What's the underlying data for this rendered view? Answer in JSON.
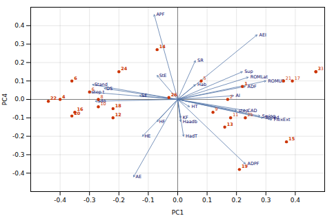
{
  "chart_data": {
    "type": "biplot",
    "xlabel": "PC1",
    "ylabel": "PC4",
    "xlim": [
      -0.5,
      0.5
    ],
    "ylim": [
      -0.5,
      0.5
    ],
    "xticks": [
      -0.4,
      -0.3,
      -0.2,
      -0.1,
      {
        "value": 0,
        "label": "0.0"
      },
      0.1,
      0.2,
      0.3,
      0.4
    ],
    "yticks": [
      -0.4,
      -0.3,
      -0.2,
      -0.1,
      {
        "value": 0,
        "label": "0.0"
      },
      0.1,
      0.2,
      0.3,
      0.4
    ],
    "grid": true,
    "vectors": {
      "color": "#5577aa",
      "label_color": "#000066",
      "origin": [
        0,
        0
      ],
      "points": [
        {
          "name": "APF",
          "x": -0.08,
          "y": 0.46
        },
        {
          "name": "AE",
          "x": -0.15,
          "y": -0.42
        },
        {
          "name": "AEI",
          "x": 0.27,
          "y": 0.35
        },
        {
          "name": "SR",
          "x": 0.06,
          "y": 0.21
        },
        {
          "name": "Sup",
          "x": 0.22,
          "y": 0.15
        },
        {
          "name": "ROMLat",
          "x": 0.24,
          "y": 0.12
        },
        {
          "name": "ROMUP",
          "x": 0.3,
          "y": 0.1
        },
        {
          "name": "ADF",
          "x": 0.23,
          "y": 0.07
        },
        {
          "name": "AI",
          "x": 0.19,
          "y": 0.02
        },
        {
          "name": "Hab",
          "x": 0.06,
          "y": 0.08
        },
        {
          "name": "HT",
          "x": 0.04,
          "y": -0.04
        },
        {
          "name": "KF",
          "x": 0.01,
          "y": -0.1
        },
        {
          "name": "Haadb",
          "x": 0.01,
          "y": -0.12
        },
        {
          "name": "HadT",
          "x": 0.02,
          "y": -0.2
        },
        {
          "name": "HF",
          "x": -0.07,
          "y": -0.12
        },
        {
          "name": "HE",
          "x": -0.12,
          "y": -0.2
        },
        {
          "name": "step",
          "x": 0.2,
          "y": -0.06
        },
        {
          "name": "CAD",
          "x": 0.23,
          "y": -0.06
        },
        {
          "name": "Swing",
          "x": 0.28,
          "y": -0.09
        },
        {
          "name": "Speed",
          "x": 0.29,
          "y": -0.1
        },
        {
          "name": "FlexExt",
          "x": 0.32,
          "y": -0.11
        },
        {
          "name": "ADPF",
          "x": 0.23,
          "y": -0.35
        },
        {
          "name": "StE",
          "x": -0.07,
          "y": 0.13
        },
        {
          "name": "SE",
          "x": -0.13,
          "y": 0.02
        },
        {
          "name": "Stand",
          "x": -0.29,
          "y": 0.08
        },
        {
          "name": "step t",
          "x": -0.3,
          "y": 0.04
        },
        {
          "name": "DS",
          "x": -0.25,
          "y": 0.06
        },
        {
          "name": "Sdo",
          "x": -0.28,
          "y": -0.01
        }
      ]
    },
    "scores": {
      "color": "#cc3300",
      "label_color": "#cc3300",
      "points": [
        {
          "label": "1",
          "x": 0.22,
          "y": 0.07,
          "bold": true
        },
        {
          "label": "2",
          "x": 0.17,
          "y": 0.0,
          "bold": false
        },
        {
          "label": "3",
          "x": 0.47,
          "y": 0.15,
          "bold": false
        },
        {
          "label": "4",
          "x": -0.4,
          "y": 0.0,
          "bold": true
        },
        {
          "label": "5",
          "x": 0.08,
          "y": 0.1,
          "bold": false
        },
        {
          "label": "6",
          "x": -0.36,
          "y": 0.1,
          "bold": true
        },
        {
          "label": "6",
          "x": -0.3,
          "y": 0.04,
          "bold": false
        },
        {
          "label": "8",
          "x": -0.27,
          "y": 0.0,
          "bold": false
        },
        {
          "label": "9",
          "x": 0.12,
          "y": -0.07,
          "bold": false
        },
        {
          "label": "10",
          "x": -0.27,
          "y": -0.04,
          "bold": false
        },
        {
          "label": "11",
          "x": 0.18,
          "y": -0.1,
          "bold": false
        },
        {
          "label": "12",
          "x": -0.22,
          "y": -0.1,
          "bold": true
        },
        {
          "label": "13",
          "x": 0.16,
          "y": -0.15,
          "bold": true
        },
        {
          "label": "14",
          "x": -0.07,
          "y": 0.27,
          "bold": true
        },
        {
          "label": "15",
          "x": 0.37,
          "y": -0.23,
          "bold": true
        },
        {
          "label": "16",
          "x": -0.35,
          "y": -0.07,
          "bold": true
        },
        {
          "label": "17",
          "x": 0.39,
          "y": 0.1,
          "bold": false
        },
        {
          "label": "18",
          "x": -0.22,
          "y": -0.05,
          "bold": true
        },
        {
          "label": "19",
          "x": 0.21,
          "y": -0.38,
          "bold": true
        },
        {
          "label": "20",
          "x": -0.36,
          "y": -0.09,
          "bold": true
        },
        {
          "label": "21",
          "x": 0.36,
          "y": 0.1,
          "bold": false
        },
        {
          "label": "22",
          "x": -0.44,
          "y": -0.01,
          "bold": true
        },
        {
          "label": "23",
          "x": 0.47,
          "y": 0.15,
          "bold": false
        },
        {
          "label": "24",
          "x": -0.2,
          "y": 0.15,
          "bold": true
        },
        {
          "label": "25",
          "x": 0.23,
          "y": -0.1,
          "bold": false
        },
        {
          "label": "26",
          "x": -0.03,
          "y": 0.01,
          "bold": true
        }
      ]
    }
  }
}
